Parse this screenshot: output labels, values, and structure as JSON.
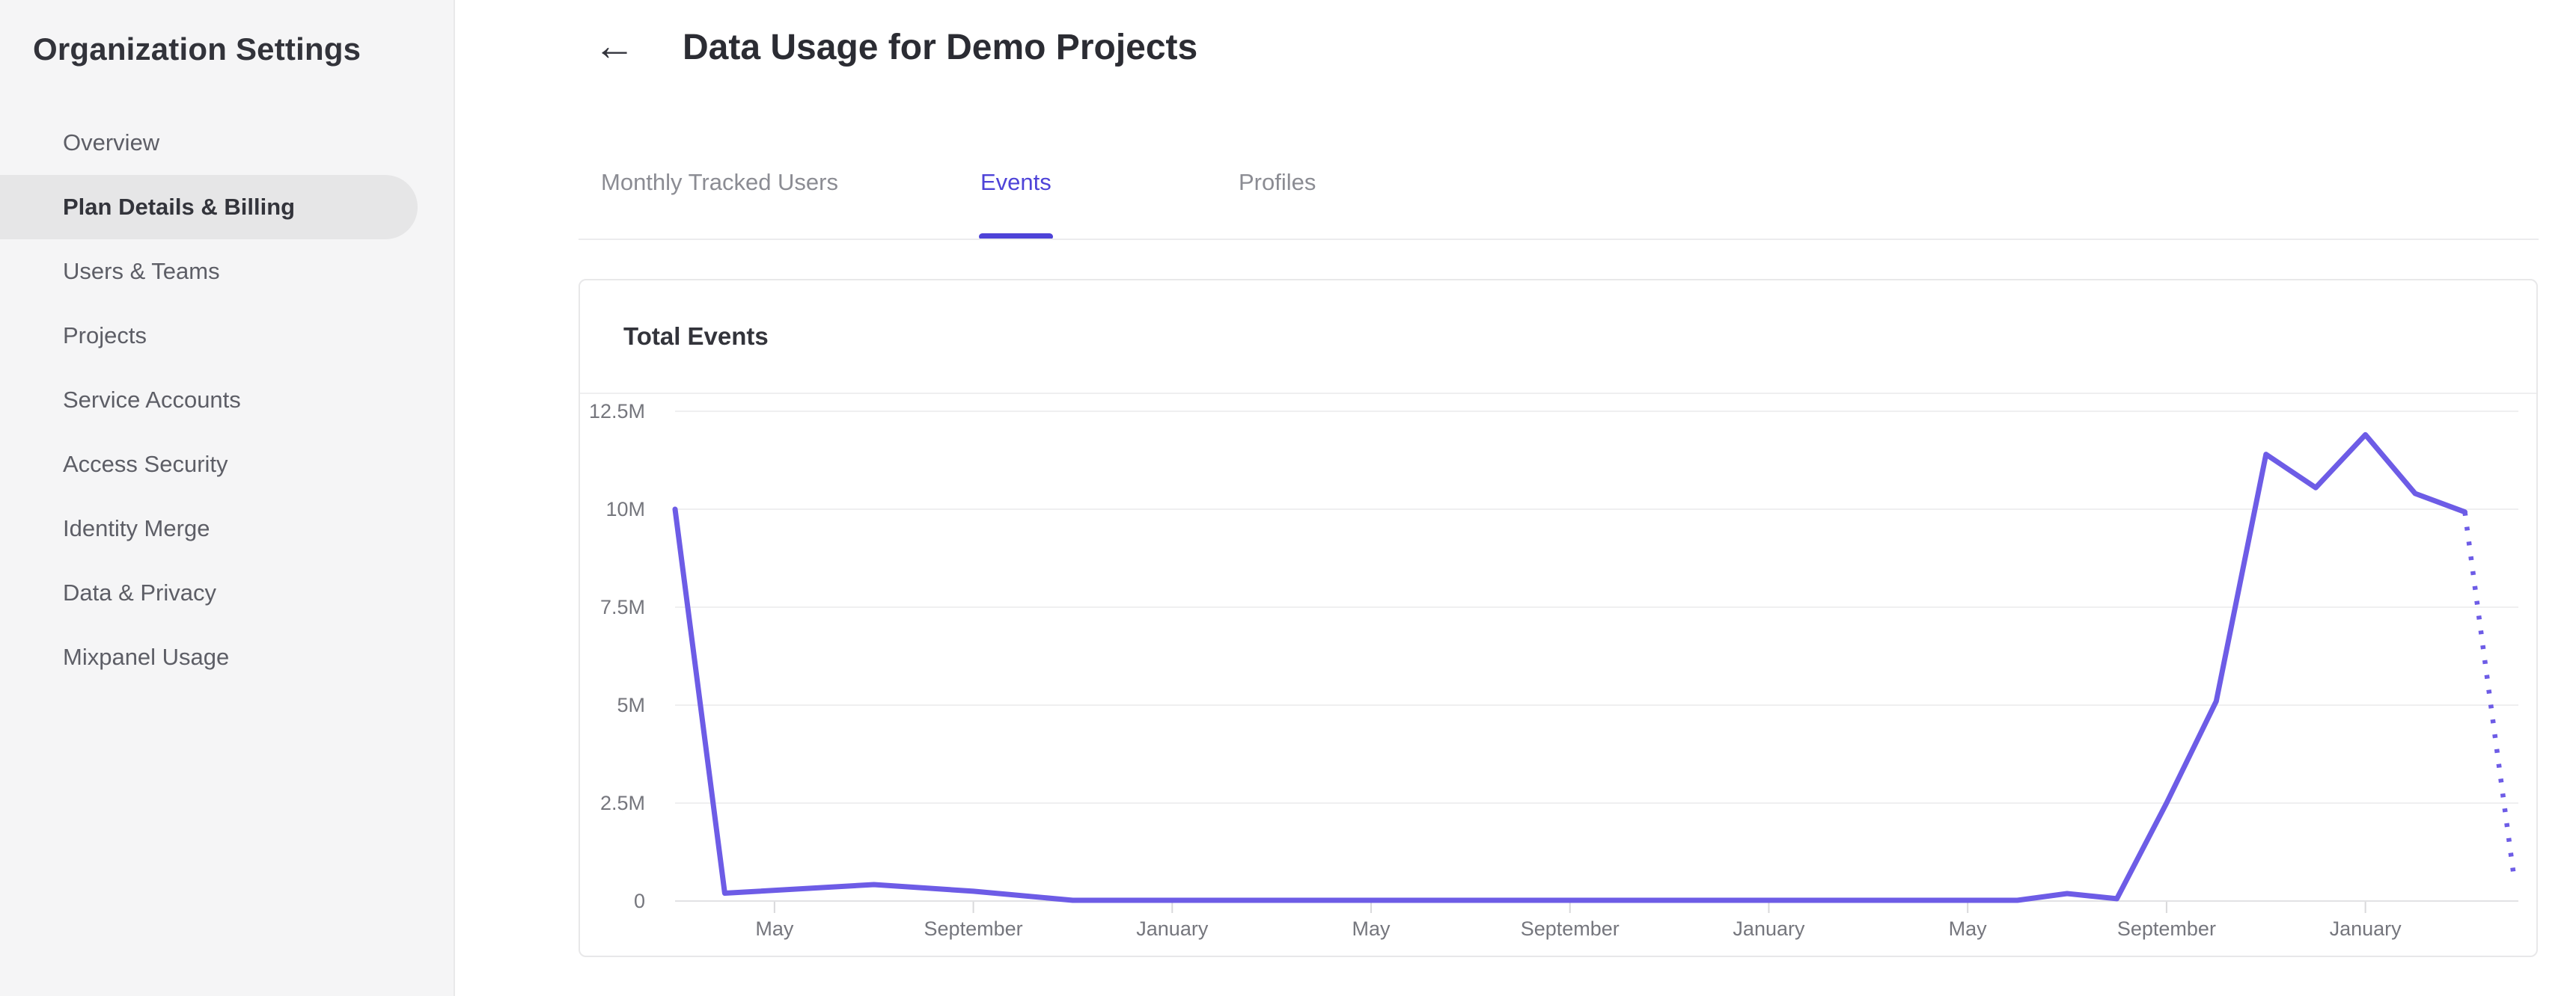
{
  "sidebar": {
    "title": "Organization Settings",
    "items": [
      {
        "label": "Overview",
        "active": false
      },
      {
        "label": "Plan Details & Billing",
        "active": true
      },
      {
        "label": "Users & Teams",
        "active": false
      },
      {
        "label": "Projects",
        "active": false
      },
      {
        "label": "Service Accounts",
        "active": false
      },
      {
        "label": "Access Security",
        "active": false
      },
      {
        "label": "Identity Merge",
        "active": false
      },
      {
        "label": "Data & Privacy",
        "active": false
      },
      {
        "label": "Mixpanel Usage",
        "active": false
      }
    ]
  },
  "header": {
    "back_icon": "←",
    "title": "Data Usage for Demo Projects"
  },
  "tabs": [
    {
      "label": "Monthly Tracked Users",
      "active": false
    },
    {
      "label": "Events",
      "active": true
    },
    {
      "label": "Profiles",
      "active": false
    }
  ],
  "card": {
    "title": "Total Events"
  },
  "colors": {
    "accent": "#4e43d8",
    "line": "#6d5ce6",
    "sidebar_bg": "#f5f5f6",
    "active_pill": "#e6e6e7",
    "gridline": "#efeff0"
  },
  "chart_data": {
    "type": "line",
    "title": "Total Events",
    "unit": "events per month (M = millions)",
    "grid": true,
    "legend": false,
    "ylim": [
      0,
      12.5
    ],
    "y_axis": {
      "tick_labels": [
        "12.5M",
        "10M",
        "7.5M",
        "5M",
        "2.5M",
        "0"
      ],
      "tick_values": [
        12.5,
        10,
        7.5,
        5,
        2.5,
        0
      ]
    },
    "x_axis": {
      "note": "monthly timeline spanning ~3 years; month_index 0 = March of year 1",
      "tick_labels": [
        "May",
        "September",
        "January",
        "May",
        "September",
        "January",
        "May",
        "September",
        "January"
      ],
      "tick_month_indices": [
        2,
        6,
        10,
        14,
        18,
        22,
        26,
        30,
        34
      ]
    },
    "series": [
      {
        "name": "Total Events (actual)",
        "style": "solid",
        "points_month_index_vs_millions": [
          [
            0,
            10.0
          ],
          [
            1,
            0.2
          ],
          [
            4,
            0.42
          ],
          [
            6,
            0.25
          ],
          [
            8,
            0.02
          ],
          [
            27,
            0.02
          ],
          [
            28,
            0.19
          ],
          [
            29,
            0.06
          ],
          [
            30,
            2.5
          ],
          [
            31,
            5.1
          ],
          [
            32,
            11.4
          ],
          [
            33,
            10.55
          ],
          [
            34,
            11.9
          ],
          [
            35,
            10.4
          ],
          [
            36,
            9.93
          ]
        ]
      },
      {
        "name": "Total Events (projected, dotted)",
        "style": "dotted",
        "points_month_index_vs_millions": [
          [
            36,
            9.93
          ],
          [
            37,
            0.5
          ]
        ]
      }
    ]
  }
}
